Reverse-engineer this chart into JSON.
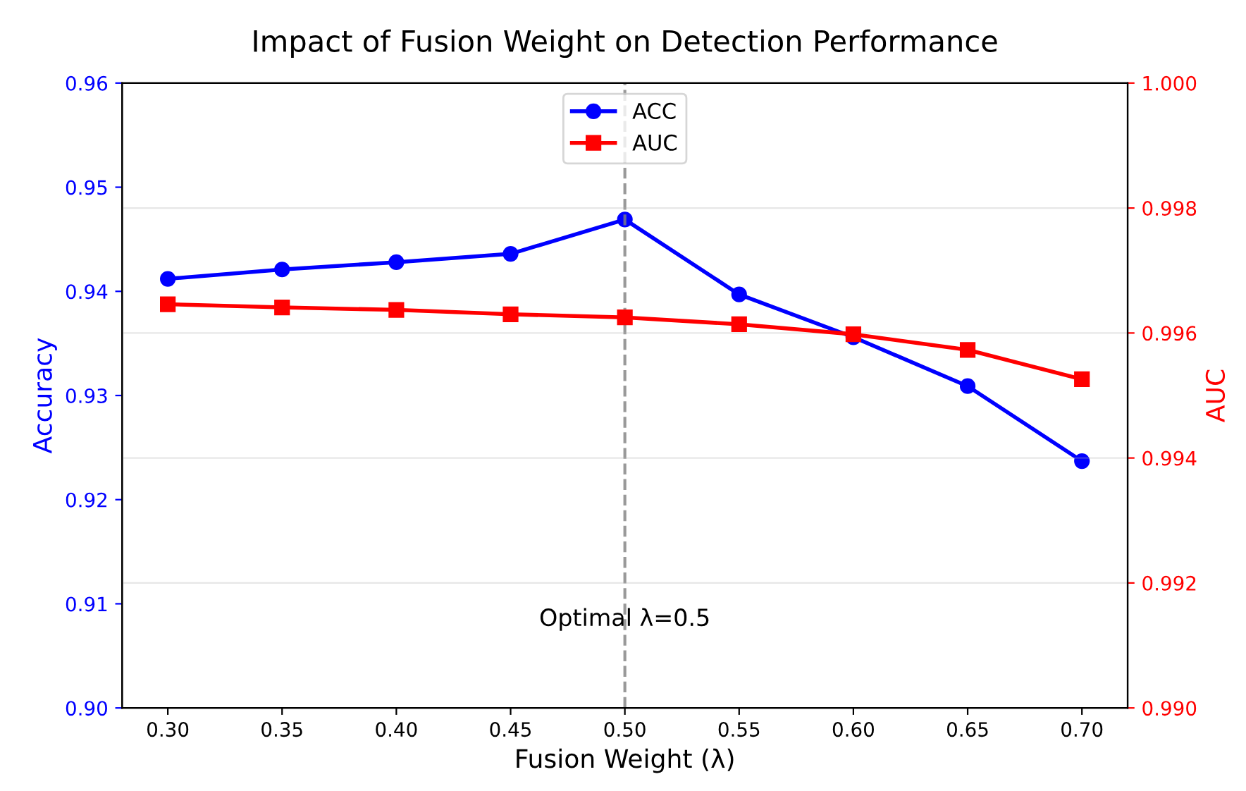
{
  "chart_data": {
    "type": "line",
    "title": "Impact of Fusion Weight on Detection Performance",
    "xlabel": "Fusion Weight (λ)",
    "ylabel": "Accuracy",
    "y2label": "AUC",
    "x": [
      0.3,
      0.35,
      0.4,
      0.45,
      0.5,
      0.55,
      0.6,
      0.65,
      0.7
    ],
    "series": [
      {
        "name": "ACC",
        "color": "#0000ff",
        "marker": "circle",
        "values": [
          0.9412,
          0.9421,
          0.9428,
          0.9436,
          0.9469,
          0.9397,
          0.9356,
          0.9309,
          0.9237
        ]
      },
      {
        "name": "AUC",
        "color": "#ff0000",
        "marker": "square",
        "axis": "y2",
        "values": [
          0.99646,
          0.99641,
          0.99637,
          0.9963,
          0.99625,
          0.99614,
          0.99598,
          0.99573,
          0.99526
        ]
      }
    ],
    "xlim": [
      0.28,
      0.72
    ],
    "xticks": [
      {
        "value": 0.3,
        "label": "0.30"
      },
      0.35,
      {
        "value": 0.4,
        "label": "0.40"
      },
      0.45,
      {
        "value": 0.5,
        "label": "0.50"
      },
      0.55,
      {
        "value": 0.6,
        "label": "0.60"
      },
      0.65,
      {
        "value": 0.7,
        "label": "0.70"
      }
    ],
    "ylim": [
      0.9,
      0.96
    ],
    "yticks": [
      {
        "value": 0.9,
        "label": "0.90"
      },
      0.91,
      0.92,
      0.93,
      0.94,
      0.95,
      0.96
    ],
    "y2lim": [
      0.99,
      1.0
    ],
    "y2ticks": [
      {
        "value": 0.99,
        "label": "0.990"
      },
      0.992,
      0.994,
      0.996,
      0.998,
      {
        "value": 1,
        "label": "1.000"
      }
    ],
    "ref_lines": [
      {
        "axis": "x",
        "value": 0.5,
        "color": "#808080",
        "line_style": "dashed"
      }
    ],
    "annotations": [
      {
        "text": "Optimal λ=0.5",
        "x": 0.5,
        "y": 0.9085
      }
    ],
    "grid": "y2",
    "legend": "top",
    "line_style": "solid"
  }
}
